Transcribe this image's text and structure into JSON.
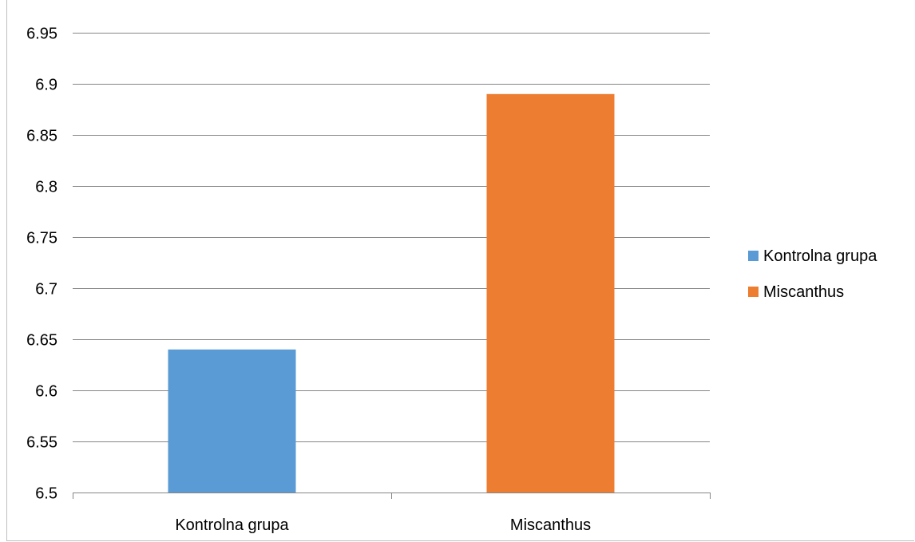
{
  "chart_data": {
    "type": "bar",
    "title": "",
    "xlabel": "",
    "ylabel": "",
    "categories": [
      "Kontrolna grupa",
      "Miscanthus"
    ],
    "values": [
      6.64,
      6.89
    ],
    "colors": [
      "#5b9bd5",
      "#ed7d31"
    ],
    "ylim": [
      6.5,
      6.95
    ],
    "yticks": [
      "6.5",
      "6.55",
      "6.6",
      "6.65",
      "6.7",
      "6.75",
      "6.8",
      "6.85",
      "6.9",
      "6.95"
    ],
    "grid": true,
    "gridline_color": "#868686",
    "legend": {
      "placement": "right",
      "entries": [
        {
          "label": "Kontrolna grupa",
          "color": "#5b9bd5"
        },
        {
          "label": "Miscanthus",
          "color": "#ed7d31"
        }
      ]
    }
  }
}
